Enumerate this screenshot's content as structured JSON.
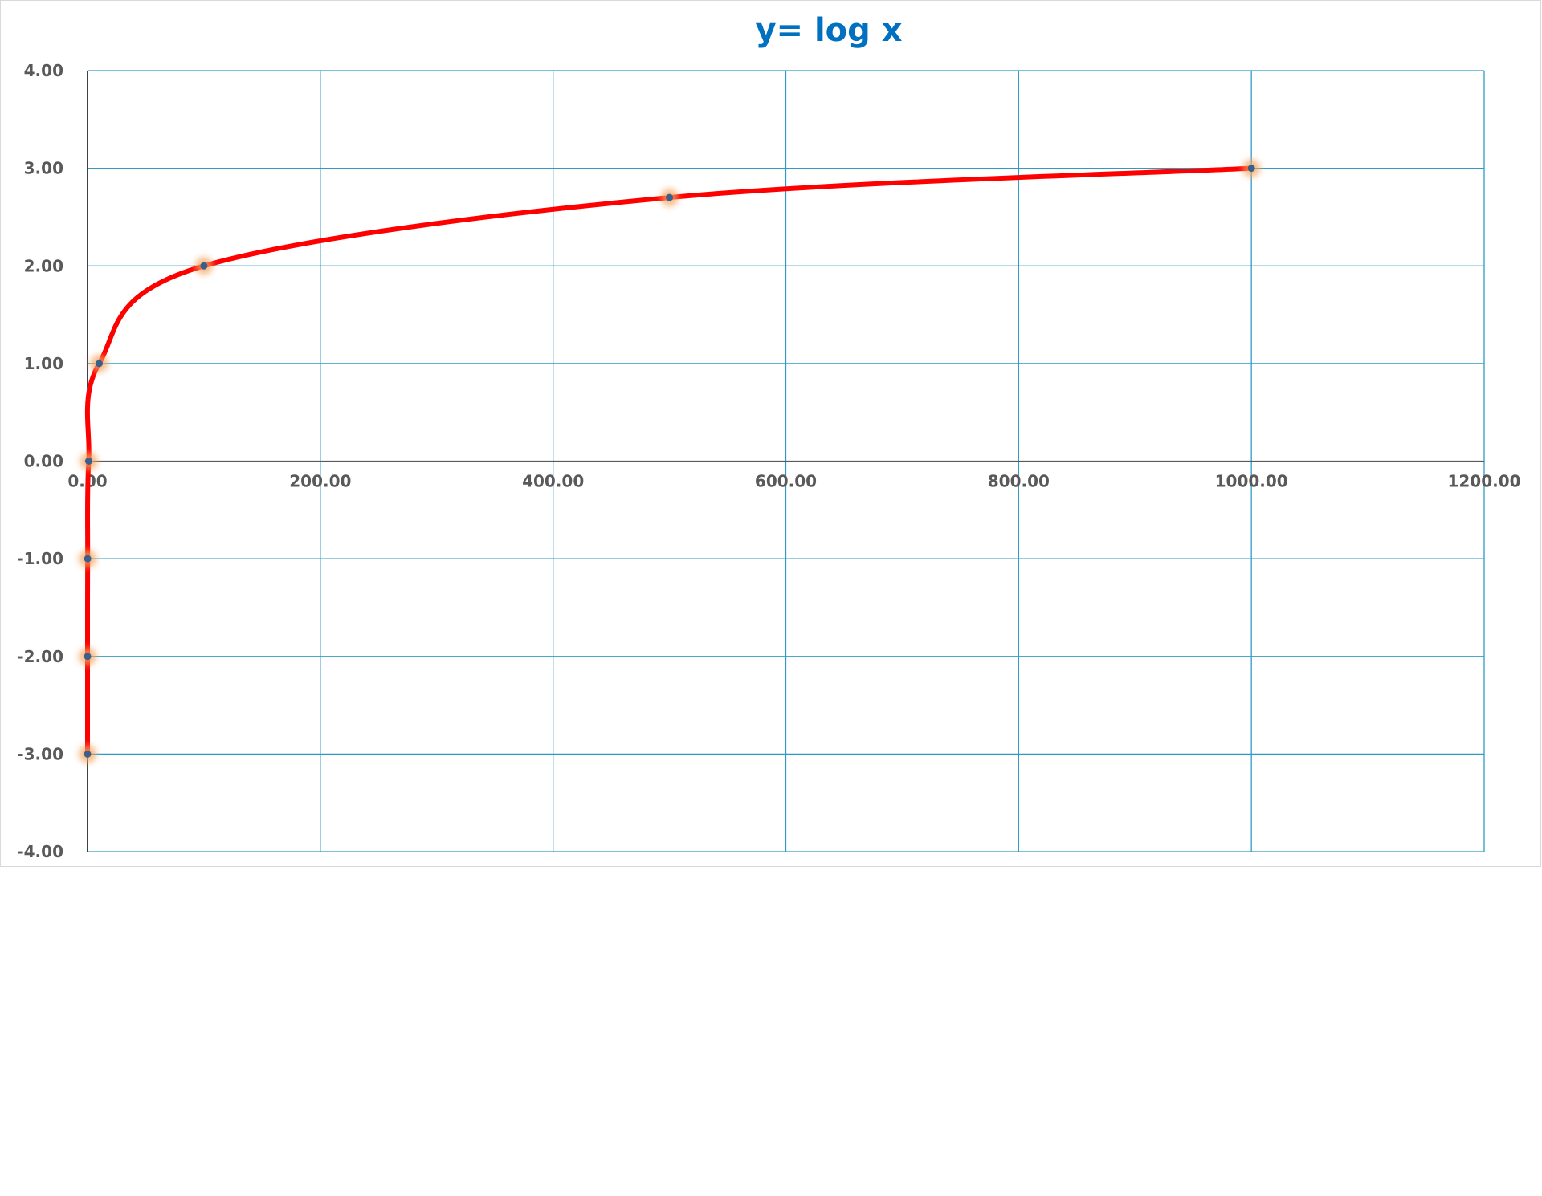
{
  "chart_data": {
    "type": "scatter",
    "title": "y= log x",
    "xlabel": "",
    "ylabel": "",
    "xlim": [
      0,
      1200
    ],
    "ylim": [
      -4,
      4
    ],
    "x_ticks": [
      "0.00",
      "200.00",
      "400.00",
      "600.00",
      "800.00",
      "1000.00",
      "1200.00"
    ],
    "y_ticks": [
      "4.00",
      "3.00",
      "2.00",
      "1.00",
      "0.00",
      "-1.00",
      "-2.00",
      "-3.00",
      "-4.00"
    ],
    "grid": true,
    "legend": "none",
    "series": [
      {
        "points": [
          {
            "x": 0.001,
            "y": -3
          },
          {
            "x": 0.01,
            "y": -2
          },
          {
            "x": 0.1,
            "y": -1
          },
          {
            "x": 1,
            "y": 0
          },
          {
            "x": 10,
            "y": 1
          },
          {
            "x": 100,
            "y": 2
          },
          {
            "x": 500,
            "y": 2.7
          },
          {
            "x": 1000,
            "y": 3
          }
        ]
      }
    ],
    "colors": {
      "title": "#0070c0",
      "curve": "#ff0000",
      "marker": "#3a5f8a",
      "marker_glow": "#f4a460",
      "grid": "#2e9bc6",
      "axis": "#000000"
    }
  }
}
